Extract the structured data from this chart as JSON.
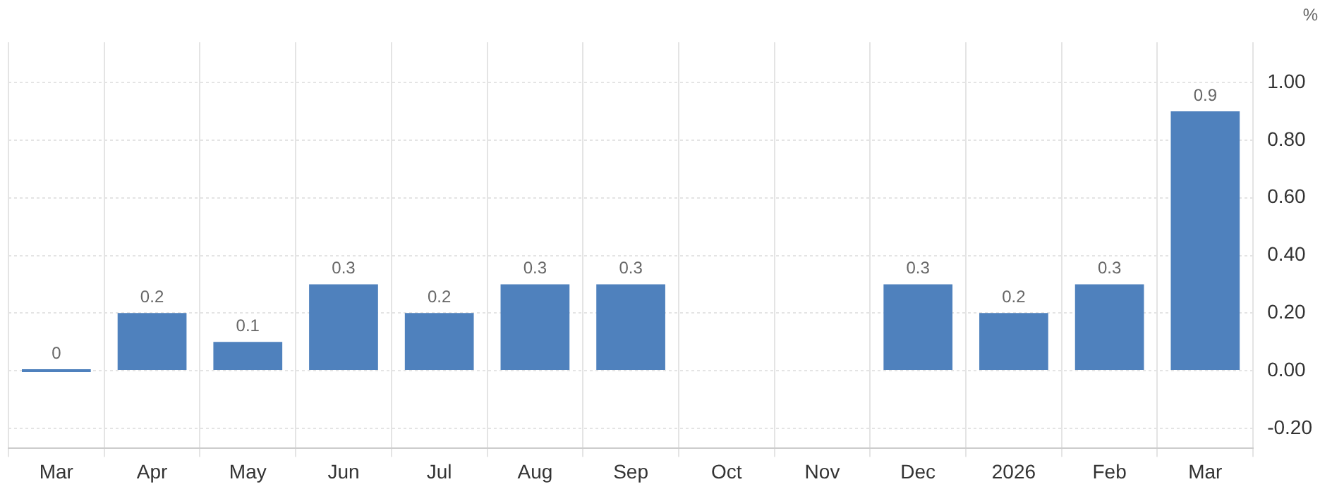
{
  "chart_data": {
    "type": "bar",
    "ylabel": "%",
    "categories": [
      "Mar",
      "Apr",
      "May",
      "Jun",
      "Jul",
      "Aug",
      "Sep",
      "Oct",
      "Nov",
      "Dec",
      "2026",
      "Feb",
      "Mar"
    ],
    "values": [
      0,
      0.2,
      0.1,
      0.3,
      0.2,
      0.3,
      0.3,
      null,
      null,
      0.3,
      0.2,
      0.3,
      0.9
    ],
    "color": "#4f81bd",
    "ylim": [
      -0.27,
      1.14
    ],
    "yticks": [
      {
        "value": -0.2,
        "label": "-0.20"
      },
      {
        "value": 0,
        "label": "0.00"
      },
      {
        "value": 0.2,
        "label": "0.20"
      },
      {
        "value": 0.4,
        "label": "0.40"
      },
      {
        "value": 0.6,
        "label": "0.60"
      },
      {
        "value": 0.8,
        "label": "0.80"
      },
      {
        "value": 1,
        "label": "1.00"
      }
    ],
    "data_labels": true,
    "grid": true,
    "legend": false
  }
}
